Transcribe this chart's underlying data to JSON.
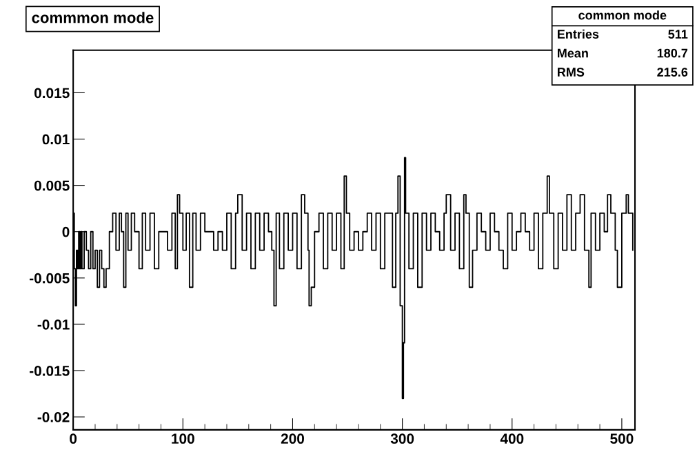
{
  "chart_data": {
    "type": "step",
    "title": "commmon mode",
    "annotations": [
      "common mode",
      "Entries",
      "511",
      "Mean",
      "180.7",
      "RMS",
      "215.6"
    ],
    "x": [
      0,
      1,
      2,
      3,
      4,
      5,
      6,
      7,
      8,
      10,
      12,
      14,
      16,
      18,
      20,
      22,
      24,
      26,
      28,
      30,
      33,
      36,
      39,
      42,
      44,
      46,
      48,
      50,
      53,
      56,
      60,
      63,
      66,
      70,
      74,
      78,
      82,
      86,
      90,
      93,
      95,
      97,
      100,
      103,
      106,
      109,
      112,
      116,
      120,
      124,
      128,
      132,
      136,
      140,
      144,
      148,
      150,
      152,
      154,
      158,
      162,
      166,
      170,
      174,
      178,
      181,
      183,
      185,
      188,
      192,
      196,
      200,
      204,
      208,
      211,
      214,
      215,
      217,
      220,
      224,
      228,
      232,
      236,
      240,
      244,
      247,
      249,
      252,
      256,
      260,
      264,
      268,
      272,
      276,
      280,
      284,
      288,
      291,
      294,
      296,
      298,
      300,
      301,
      302,
      303,
      306,
      310,
      314,
      318,
      322,
      326,
      330,
      334,
      338,
      340,
      344,
      348,
      352,
      356,
      358,
      361,
      364,
      368,
      372,
      376,
      380,
      384,
      388,
      392,
      396,
      400,
      404,
      408,
      412,
      416,
      420,
      424,
      428,
      432,
      434,
      438,
      442,
      446,
      450,
      454,
      458,
      462,
      466,
      470,
      472,
      476,
      480,
      484,
      487,
      490,
      494,
      496,
      500,
      504,
      506,
      510
    ],
    "series": [
      {
        "color": "#000000",
        "values": [
          0.002,
          -0.004,
          -0.008,
          -0.002,
          -0.004,
          0,
          -0.004,
          0,
          -0.004,
          0,
          -0.002,
          -0.004,
          0,
          -0.004,
          -0.002,
          -0.006,
          -0.002,
          -0.004,
          -0.006,
          -0.004,
          0,
          0.002,
          -0.002,
          0.002,
          0,
          -0.006,
          0.002,
          -0.002,
          0.002,
          0,
          -0.004,
          0.002,
          -0.002,
          0.002,
          -0.004,
          0,
          0,
          -0.002,
          0.002,
          -0.004,
          0.004,
          0.002,
          -0.002,
          0.002,
          -0.006,
          0.002,
          -0.002,
          0.002,
          0,
          0,
          -0.002,
          0,
          -0.002,
          0.002,
          -0.004,
          0.002,
          0.004,
          0.004,
          -0.002,
          0.002,
          -0.004,
          0.002,
          -0.002,
          0.002,
          0,
          -0.002,
          -0.008,
          0.002,
          -0.004,
          0.002,
          -0.002,
          0.002,
          -0.004,
          0.004,
          0.002,
          -0.002,
          -0.008,
          -0.006,
          0,
          0.002,
          -0.004,
          0.002,
          -0.002,
          0.002,
          -0.004,
          0.006,
          0.002,
          -0.002,
          0,
          -0.002,
          0,
          0.002,
          -0.002,
          0.002,
          -0.004,
          0.002,
          0.002,
          -0.006,
          0.002,
          0.006,
          -0.008,
          -0.018,
          -0.012,
          0.008,
          0.002,
          -0.004,
          0.002,
          -0.006,
          0.002,
          -0.002,
          0.002,
          0,
          -0.002,
          0.002,
          0.004,
          -0.002,
          0.002,
          -0.004,
          0.004,
          0.002,
          -0.006,
          -0.002,
          0.002,
          0,
          -0.002,
          0.002,
          0,
          -0.002,
          -0.004,
          0.002,
          -0.002,
          0,
          0.002,
          0,
          -0.002,
          0.002,
          -0.004,
          0.002,
          0.006,
          0.002,
          -0.004,
          0.002,
          -0.002,
          0.004,
          -0.002,
          0.002,
          0.004,
          -0.002,
          -0.006,
          0.002,
          -0.002,
          0.002,
          0,
          0.004,
          0.002,
          -0.002,
          -0.006,
          0.002,
          0.004,
          0.002,
          -0.002
        ]
      }
    ],
    "xlim": [
      0,
      512
    ],
    "ylim": [
      -0.0214,
      0.0196
    ],
    "xticks": [
      0,
      100,
      200,
      300,
      400,
      500
    ],
    "yticks": [
      -0.02,
      -0.015,
      -0.01,
      -0.005,
      0,
      0.005,
      0.01,
      0.015
    ]
  }
}
